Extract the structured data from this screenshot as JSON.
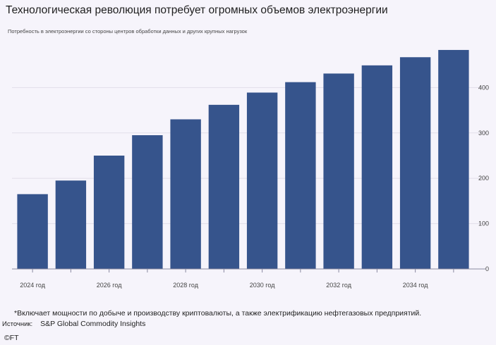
{
  "title": "Технологическая революция потребует огромных объемов электроэнергии",
  "subtitle": "Потребность в электроэнергии со стороны центров обработки данных и других крупных нагрузок",
  "footnote": "*Включает мощности по добыче и производству криптовалюты, а также электрификацию нефтегазовых предприятий.",
  "source_label": "Источник:",
  "source_value": "S&P Global Commodity Insights",
  "copyright": "©FT",
  "colors": {
    "bar": "#36548c",
    "grid": "#e2deea",
    "axis": "#8a8aa0",
    "background": "#f6f4fb"
  },
  "chart_data": {
    "type": "bar",
    "categories": [
      "2024",
      "2025",
      "2026",
      "2027",
      "2028",
      "2029",
      "2030",
      "2031",
      "2032",
      "2033",
      "2034",
      "2035"
    ],
    "x_tick_labels": [
      "2024 год",
      "2026 год",
      "2028 год",
      "2030 год",
      "2032 год",
      "2034 год"
    ],
    "values": [
      165,
      195,
      250,
      295,
      330,
      362,
      389,
      412,
      431,
      449,
      467,
      483
    ],
    "y_ticks": [
      0,
      100,
      200,
      300,
      400
    ],
    "ylim": [
      0,
      500
    ],
    "grid": true,
    "y_axis_side": "right"
  }
}
